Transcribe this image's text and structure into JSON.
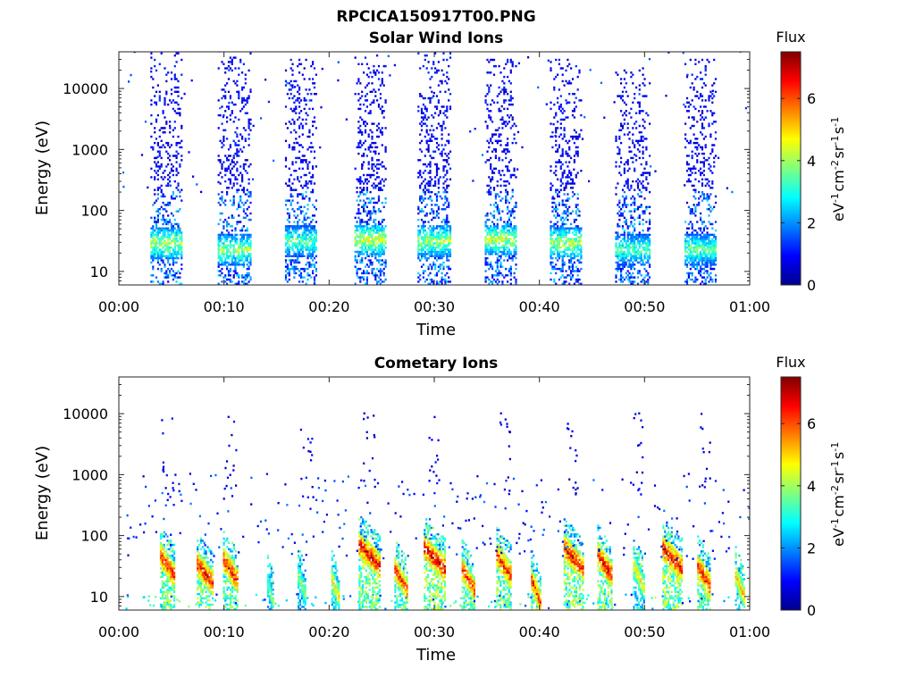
{
  "figure": {
    "title": "RPCICA150917T00.PNG"
  },
  "colorscale": {
    "stops": [
      "#00008f",
      "#0000ff",
      "#0080ff",
      "#00ffff",
      "#80ff80",
      "#ffff00",
      "#ff8000",
      "#ff0000",
      "#800000"
    ],
    "min": 0,
    "max": 7.5,
    "ticks": [
      0,
      2,
      4,
      6
    ],
    "title": "Flux",
    "unit_base": [
      "eV",
      "cm",
      "sr",
      "s"
    ],
    "unit_exp": [
      "-1",
      "-2",
      "-1",
      "-1"
    ]
  },
  "chart_data": [
    {
      "type": "heatmap",
      "title": "Solar Wind Ions",
      "xlabel": "Time",
      "ylabel": "Energy (eV)",
      "x_ticks": [
        "00:00",
        "00:10",
        "00:20",
        "00:30",
        "00:40",
        "00:50",
        "01:00"
      ],
      "x_range_min": [
        0,
        60
      ],
      "y_ticks": [
        10,
        100,
        1000,
        10000
      ],
      "y_tick_labels": [
        "10",
        "100",
        "1000",
        "10000"
      ],
      "ylim": [
        6,
        40000
      ],
      "y_scale": "log",
      "grid": false,
      "clim": [
        0,
        7.5
      ],
      "bursts": [
        {
          "start": 3.0,
          "end": 6.0,
          "peak_energy": 28,
          "peak_flux": 4.6,
          "tail_top": 40000,
          "density": 0.55
        },
        {
          "start": 9.4,
          "end": 12.6,
          "peak_energy": 22,
          "peak_flux": 4.3,
          "tail_top": 40000,
          "density": 0.55
        },
        {
          "start": 15.8,
          "end": 18.8,
          "peak_energy": 30,
          "peak_flux": 3.9,
          "tail_top": 30000,
          "density": 0.5
        },
        {
          "start": 22.4,
          "end": 25.4,
          "peak_energy": 32,
          "peak_flux": 4.8,
          "tail_top": 35000,
          "density": 0.55
        },
        {
          "start": 28.4,
          "end": 31.6,
          "peak_energy": 30,
          "peak_flux": 4.4,
          "tail_top": 38000,
          "density": 0.6
        },
        {
          "start": 34.8,
          "end": 37.8,
          "peak_energy": 32,
          "peak_flux": 4.6,
          "tail_top": 30000,
          "density": 0.55
        },
        {
          "start": 41.0,
          "end": 44.0,
          "peak_energy": 28,
          "peak_flux": 4.5,
          "tail_top": 30000,
          "density": 0.55
        },
        {
          "start": 47.2,
          "end": 50.4,
          "peak_energy": 22,
          "peak_flux": 3.8,
          "tail_top": 22000,
          "density": 0.55
        },
        {
          "start": 53.8,
          "end": 56.8,
          "peak_energy": 22,
          "peak_flux": 4.0,
          "tail_top": 30000,
          "density": 0.55
        }
      ]
    },
    {
      "type": "heatmap",
      "title": "Cometary Ions",
      "xlabel": "Time",
      "ylabel": "Energy (eV)",
      "x_ticks": [
        "00:00",
        "00:10",
        "00:20",
        "00:30",
        "00:40",
        "00:50",
        "01:00"
      ],
      "x_range_min": [
        0,
        60
      ],
      "y_ticks": [
        10,
        100,
        1000,
        10000
      ],
      "y_tick_labels": [
        "10",
        "100",
        "1000",
        "10000"
      ],
      "ylim": [
        6,
        40000
      ],
      "y_scale": "log",
      "grid": false,
      "clim": [
        0,
        7.5
      ],
      "bursts": [
        {
          "center": 4.6,
          "peak_energy": 30,
          "peak_flux": 6.8,
          "width_min": 1.4
        },
        {
          "center": 8.2,
          "peak_energy": 22,
          "peak_flux": 7.0,
          "width_min": 1.6
        },
        {
          "center": 10.6,
          "peak_energy": 25,
          "peak_flux": 6.9,
          "width_min": 1.4
        },
        {
          "center": 14.4,
          "peak_energy": 10,
          "peak_flux": 4.0,
          "width_min": 0.6
        },
        {
          "center": 17.4,
          "peak_energy": 14,
          "peak_flux": 4.2,
          "width_min": 0.8
        },
        {
          "center": 20.6,
          "peak_energy": 12,
          "peak_flux": 5.0,
          "width_min": 0.8
        },
        {
          "center": 23.8,
          "peak_energy": 45,
          "peak_flux": 7.0,
          "width_min": 2.0
        },
        {
          "center": 26.8,
          "peak_energy": 18,
          "peak_flux": 6.6,
          "width_min": 1.2
        },
        {
          "center": 30.0,
          "peak_energy": 40,
          "peak_flux": 7.2,
          "width_min": 2.0
        },
        {
          "center": 33.2,
          "peak_energy": 18,
          "peak_flux": 6.6,
          "width_min": 1.2
        },
        {
          "center": 36.6,
          "peak_energy": 30,
          "peak_flux": 6.8,
          "width_min": 1.4
        },
        {
          "center": 39.6,
          "peak_energy": 12,
          "peak_flux": 6.6,
          "width_min": 0.8
        },
        {
          "center": 43.2,
          "peak_energy": 40,
          "peak_flux": 7.0,
          "width_min": 1.8
        },
        {
          "center": 46.2,
          "peak_energy": 30,
          "peak_flux": 7.0,
          "width_min": 1.4
        },
        {
          "center": 49.4,
          "peak_energy": 20,
          "peak_flux": 5.0,
          "width_min": 1.0
        },
        {
          "center": 52.6,
          "peak_energy": 40,
          "peak_flux": 7.2,
          "width_min": 1.8
        },
        {
          "center": 55.6,
          "peak_energy": 20,
          "peak_flux": 6.8,
          "width_min": 1.2
        },
        {
          "center": 59.0,
          "peak_energy": 14,
          "peak_flux": 5.4,
          "width_min": 0.8
        }
      ]
    }
  ]
}
